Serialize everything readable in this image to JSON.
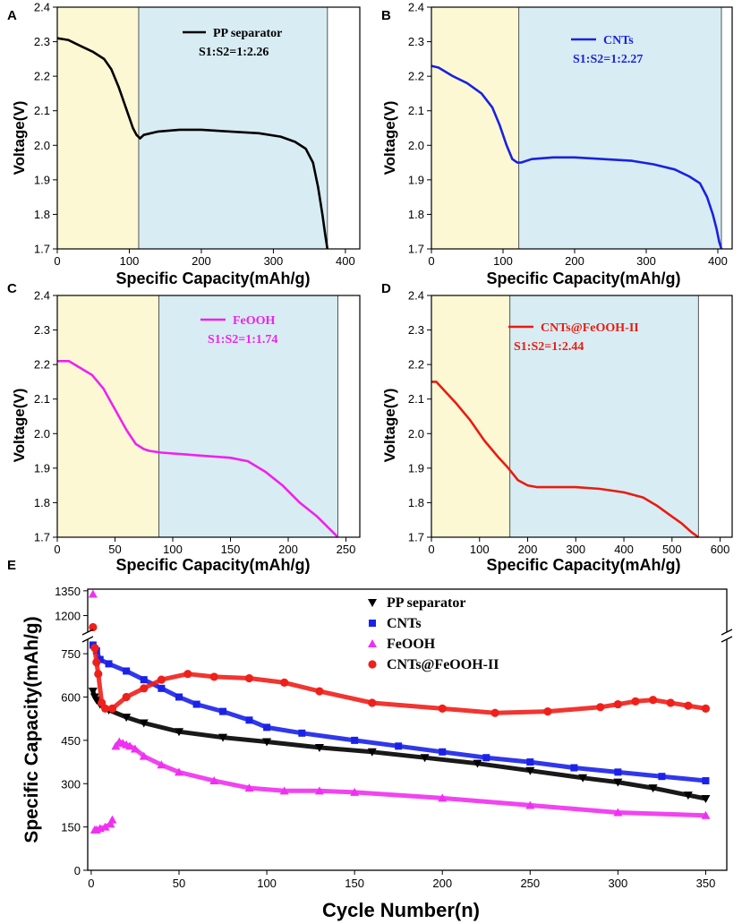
{
  "chart_data": [
    {
      "id": "A",
      "panel_label": "A",
      "type": "line",
      "xlabel": "Specific Capacity(mAh/g)",
      "ylabel": "Voltage(V)",
      "xlim": [
        0,
        420
      ],
      "ylim": [
        1.7,
        2.4
      ],
      "xticks": [
        0,
        100,
        200,
        300,
        400
      ],
      "yticks": [
        1.7,
        1.8,
        1.9,
        2.0,
        2.1,
        2.2,
        2.3,
        2.4
      ],
      "x_tick_labels": [
        "0",
        "100",
        "200",
        "300",
        "400"
      ],
      "y_tick_labels": [
        "1.7",
        "1.8",
        "1.9",
        "2.0",
        "2.1",
        "2.2",
        "2.3",
        "2.4"
      ],
      "region_bounds": [
        0,
        113,
        375
      ],
      "region_colors": [
        "#fdf8d4",
        "#d8ecf3"
      ],
      "series": [
        {
          "name": "PP separator",
          "color": "#000000",
          "x": [
            0,
            15,
            30,
            50,
            65,
            75,
            85,
            95,
            105,
            110,
            115,
            120,
            140,
            170,
            200,
            240,
            280,
            310,
            330,
            345,
            355,
            362,
            368,
            372,
            375
          ],
          "y": [
            2.31,
            2.305,
            2.29,
            2.27,
            2.25,
            2.22,
            2.17,
            2.11,
            2.05,
            2.03,
            2.02,
            2.03,
            2.04,
            2.045,
            2.045,
            2.04,
            2.035,
            2.025,
            2.01,
            1.99,
            1.95,
            1.88,
            1.8,
            1.74,
            1.7
          ]
        }
      ],
      "legend": {
        "label": "PP separator",
        "ratio": "S1:S2=1:2.26"
      }
    },
    {
      "id": "B",
      "panel_label": "B",
      "type": "line",
      "xlabel": "Specific Capacity(mAh/g)",
      "ylabel": "Voltage(V)",
      "xlim": [
        0,
        420
      ],
      "ylim": [
        1.7,
        2.4
      ],
      "xticks": [
        0,
        100,
        200,
        300,
        400
      ],
      "yticks": [
        1.7,
        1.8,
        1.9,
        2.0,
        2.1,
        2.2,
        2.3,
        2.4
      ],
      "x_tick_labels": [
        "0",
        "100",
        "200",
        "300",
        "400"
      ],
      "y_tick_labels": [
        "1.7",
        "1.8",
        "1.9",
        "2.0",
        "2.1",
        "2.2",
        "2.3",
        "2.4"
      ],
      "region_bounds": [
        0,
        122,
        405
      ],
      "region_colors": [
        "#fdf8d4",
        "#d8ecf3"
      ],
      "series": [
        {
          "name": "CNTs",
          "color": "#1a22e0",
          "x": [
            0,
            10,
            30,
            50,
            70,
            85,
            95,
            105,
            113,
            120,
            125,
            140,
            170,
            200,
            240,
            280,
            310,
            340,
            360,
            375,
            385,
            393,
            398,
            402,
            405
          ],
          "y": [
            2.23,
            2.225,
            2.2,
            2.18,
            2.15,
            2.11,
            2.06,
            2.0,
            1.96,
            1.95,
            1.95,
            1.96,
            1.965,
            1.965,
            1.96,
            1.955,
            1.945,
            1.93,
            1.91,
            1.89,
            1.85,
            1.8,
            1.76,
            1.72,
            1.7
          ]
        }
      ],
      "legend": {
        "label": "CNTs",
        "ratio": "S1:S2=1:2.27"
      }
    },
    {
      "id": "C",
      "panel_label": "C",
      "type": "line",
      "xlabel": "Specific Capacity(mAh/g)",
      "ylabel": "Voltage(V)",
      "xlim": [
        0,
        262
      ],
      "ylim": [
        1.7,
        2.4
      ],
      "xticks": [
        0,
        50,
        100,
        150,
        200,
        250
      ],
      "yticks": [
        1.7,
        1.8,
        1.9,
        2.0,
        2.1,
        2.2,
        2.3,
        2.4
      ],
      "x_tick_labels": [
        "0",
        "50",
        "100",
        "150",
        "200",
        "250"
      ],
      "y_tick_labels": [
        "1.7",
        "1.8",
        "1.9",
        "2.0",
        "2.1",
        "2.2",
        "2.3",
        "2.4"
      ],
      "region_bounds": [
        0,
        88,
        243
      ],
      "region_colors": [
        "#fdf8d4",
        "#d8ecf3"
      ],
      "series": [
        {
          "name": "FeOOH",
          "color": "#ee22ee",
          "x": [
            0,
            10,
            20,
            30,
            40,
            50,
            60,
            68,
            75,
            80,
            90,
            110,
            130,
            150,
            165,
            180,
            195,
            210,
            225,
            240,
            243
          ],
          "y": [
            2.21,
            2.21,
            2.19,
            2.17,
            2.13,
            2.07,
            2.01,
            1.97,
            1.955,
            1.95,
            1.945,
            1.94,
            1.935,
            1.93,
            1.92,
            1.89,
            1.85,
            1.8,
            1.76,
            1.71,
            1.7
          ]
        }
      ],
      "legend": {
        "label": "FeOOH",
        "ratio": "S1:S2=1:1.74"
      }
    },
    {
      "id": "D",
      "panel_label": "D",
      "type": "line",
      "xlabel": "Specific Capacity(mAh/g)",
      "ylabel": "Voltage(V)",
      "xlim": [
        0,
        625
      ],
      "ylim": [
        1.7,
        2.4
      ],
      "xticks": [
        0,
        100,
        200,
        300,
        400,
        500,
        600
      ],
      "yticks": [
        1.7,
        1.8,
        1.9,
        2.0,
        2.1,
        2.2,
        2.3,
        2.4
      ],
      "x_tick_labels": [
        "0",
        "100",
        "200",
        "300",
        "400",
        "500",
        "600"
      ],
      "y_tick_labels": [
        "1.7",
        "1.8",
        "1.9",
        "2.0",
        "2.1",
        "2.2",
        "2.3",
        "2.4"
      ],
      "region_bounds": [
        0,
        163,
        555
      ],
      "region_colors": [
        "#fdf8d4",
        "#d8ecf3"
      ],
      "series": [
        {
          "name": "CNTs@FeOOH-II",
          "color": "#e81c12",
          "x": [
            0,
            10,
            30,
            50,
            80,
            110,
            140,
            160,
            180,
            200,
            220,
            260,
            300,
            350,
            400,
            440,
            470,
            500,
            520,
            540,
            555
          ],
          "y": [
            2.15,
            2.15,
            2.12,
            2.09,
            2.04,
            1.98,
            1.93,
            1.9,
            1.865,
            1.85,
            1.845,
            1.845,
            1.845,
            1.84,
            1.83,
            1.815,
            1.79,
            1.76,
            1.74,
            1.715,
            1.7
          ]
        }
      ],
      "legend": {
        "label": "CNTs@FeOOH-II",
        "ratio": "S1:S2=1:2.44"
      }
    },
    {
      "id": "E",
      "panel_label": "E",
      "type": "scatter",
      "xlabel": "Cycle Number(n)",
      "ylabel": "Specific Capacity(mAh/g)",
      "xlim": [
        -2,
        362
      ],
      "xticks": [
        0,
        50,
        100,
        150,
        200,
        250,
        300,
        350
      ],
      "x_tick_labels": [
        "0",
        "50",
        "100",
        "150",
        "200",
        "250",
        "300",
        "350"
      ],
      "y_lower_range": [
        0,
        800
      ],
      "y_upper_range": [
        1100,
        1360
      ],
      "y_break": true,
      "yticks": [
        0,
        150,
        300,
        450,
        600,
        750,
        1200,
        1350
      ],
      "y_tick_labels": [
        "0",
        "150",
        "300",
        "450",
        "600",
        "750",
        "1200",
        "1350"
      ],
      "legend_position": "top-center",
      "series": [
        {
          "name": "PP separator",
          "marker": "triangle-down",
          "color": "#000000",
          "x": [
            1,
            2,
            3,
            5,
            10,
            20,
            30,
            50,
            75,
            100,
            130,
            160,
            190,
            220,
            250,
            280,
            300,
            320,
            340,
            350
          ],
          "y": [
            620,
            600,
            590,
            575,
            555,
            530,
            510,
            480,
            460,
            445,
            425,
            410,
            390,
            370,
            345,
            320,
            305,
            285,
            260,
            248
          ]
        },
        {
          "name": "CNTs",
          "marker": "square",
          "color": "#1a22e8",
          "x": [
            1,
            3,
            5,
            10,
            20,
            30,
            40,
            50,
            60,
            75,
            90,
            100,
            120,
            150,
            175,
            200,
            225,
            250,
            275,
            300,
            325,
            350
          ],
          "y": [
            780,
            760,
            730,
            715,
            690,
            660,
            630,
            600,
            575,
            550,
            520,
            495,
            475,
            450,
            430,
            410,
            390,
            375,
            355,
            340,
            325,
            310
          ]
        },
        {
          "name": "FeOOH",
          "marker": "triangle-up",
          "color": "#f030f0",
          "x": [
            1,
            2,
            3,
            5,
            8,
            11,
            12,
            14,
            16,
            18,
            20,
            22,
            25,
            30,
            40,
            50,
            70,
            90,
            110,
            130,
            150,
            200,
            250,
            300,
            350
          ],
          "y": [
            1330,
            140,
            140,
            145,
            150,
            160,
            175,
            430,
            445,
            440,
            435,
            430,
            420,
            395,
            365,
            340,
            310,
            285,
            275,
            275,
            270,
            250,
            225,
            200,
            190
          ]
        },
        {
          "name": "CNTs@FeOOH-II",
          "marker": "circle",
          "color": "#ef1f1a",
          "x": [
            1,
            2,
            3,
            4,
            6,
            8,
            12,
            20,
            30,
            40,
            55,
            70,
            90,
            110,
            130,
            160,
            200,
            230,
            260,
            290,
            300,
            310,
            320,
            330,
            340,
            350
          ],
          "y": [
            1130,
            770,
            720,
            680,
            580,
            560,
            560,
            600,
            630,
            660,
            680,
            670,
            665,
            650,
            620,
            580,
            560,
            545,
            550,
            565,
            575,
            585,
            590,
            580,
            570,
            560
          ]
        }
      ]
    }
  ]
}
